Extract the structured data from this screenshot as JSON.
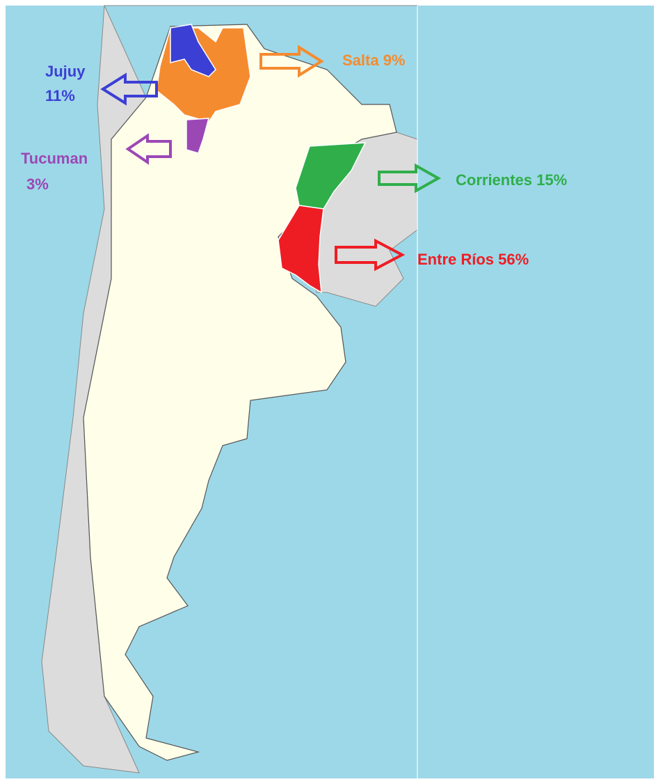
{
  "labels": [
    {
      "name": "Jujuy",
      "share": "11%"
    },
    {
      "text": "Salta 9%"
    },
    {
      "name": "Tucuman",
      "share": "3%"
    },
    {
      "text": "Corrientes 15%"
    },
    {
      "text": "Entre Ríos 56%"
    }
  ]
}
